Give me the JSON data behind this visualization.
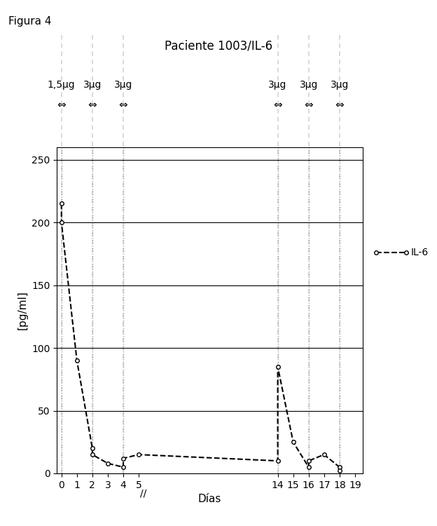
{
  "title_figure": "Figura 4",
  "title_chart": "Paciente 1003/IL-6",
  "xlabel": "Días",
  "ylabel": "[pg/ml]",
  "ylim": [
    0,
    260
  ],
  "yticks": [
    0,
    50,
    100,
    150,
    200,
    250
  ],
  "xticks": [
    0,
    1,
    2,
    3,
    4,
    5,
    14,
    15,
    16,
    17,
    18,
    19
  ],
  "xticklabels": [
    "0",
    "1",
    "2",
    "3",
    "4",
    "5",
    "14",
    "15",
    "16",
    "17",
    "18",
    "19"
  ],
  "il6_x": [
    0,
    0,
    1,
    2,
    2,
    3,
    4,
    4,
    5,
    14,
    14,
    15,
    16,
    16,
    17,
    18,
    18
  ],
  "il6_y": [
    215,
    200,
    90,
    20,
    15,
    8,
    5,
    12,
    15,
    10,
    85,
    25,
    5,
    10,
    15,
    5,
    2
  ],
  "line_color": "#000000",
  "legend_label": "IL-6",
  "dose_labels": [
    "1,5μg",
    "3μg",
    "3μg",
    "3μg",
    "3μg",
    "3μg"
  ],
  "dose_x_positions": [
    0,
    2,
    4,
    14,
    16,
    18
  ],
  "vline_positions": [
    0,
    2,
    4,
    14,
    16,
    18
  ],
  "background_color": "#ffffff"
}
